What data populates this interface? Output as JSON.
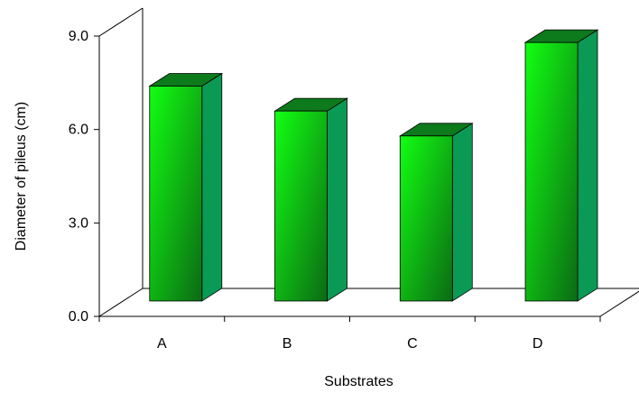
{
  "chart_data": {
    "type": "bar",
    "categories": [
      "A",
      "B",
      "C",
      "D"
    ],
    "values": [
      6.9,
      6.1,
      5.3,
      8.3
    ],
    "xlabel": "Substrates",
    "ylabel": "Diameter of pileus (cm)",
    "ylim": [
      0,
      9
    ],
    "yticks": [
      "0.0",
      "3.0",
      "6.0",
      "9.0"
    ],
    "grid": false,
    "legend": "none",
    "bar_color": "#10c810",
    "bar_side_color": "#0a9a55",
    "bar_top_color": "#0d7a1c"
  }
}
